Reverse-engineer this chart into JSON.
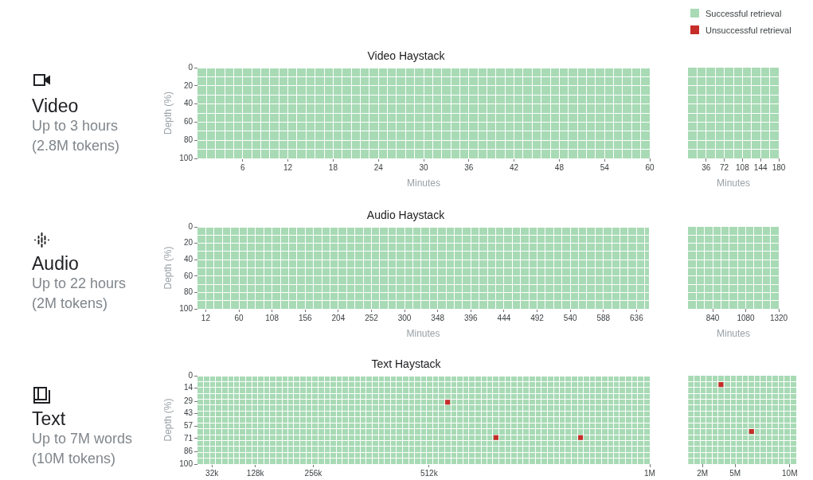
{
  "chart_data": [
    {
      "type": "other",
      "title": "Video",
      "annotations": [
        "Up to 3 hours",
        "(2.8M tokens)"
      ]
    },
    {
      "type": "scatter",
      "title": "Video Haystack",
      "xlabel": "Minutes",
      "ylabel": "Depth (%)",
      "xlim": [
        0,
        60
      ],
      "xticks": [
        {
          "value": 1.2,
          "label": null
        },
        {
          "value": 2.4,
          "label": null
        },
        {
          "value": 3.6,
          "label": null
        },
        {
          "value": 4.8,
          "label": null
        },
        6,
        {
          "value": 7.2,
          "label": null
        },
        {
          "value": 8.4,
          "label": null
        },
        {
          "value": 9.6,
          "label": null
        },
        {
          "value": 10.8,
          "label": null
        },
        12,
        {
          "value": 13.2,
          "label": null
        },
        {
          "value": 14.4,
          "label": null
        },
        {
          "value": 15.6,
          "label": null
        },
        {
          "value": 16.8,
          "label": null
        },
        18,
        {
          "value": 19.2,
          "label": null
        },
        {
          "value": 20.4,
          "label": null
        },
        {
          "value": 21.6,
          "label": null
        },
        {
          "value": 22.8,
          "label": null
        },
        24,
        {
          "value": 25.2,
          "label": null
        },
        {
          "value": 26.4,
          "label": null
        },
        {
          "value": 27.6,
          "label": null
        },
        {
          "value": 28.8,
          "label": null
        },
        30,
        {
          "value": 31.2,
          "label": null
        },
        {
          "value": 32.4,
          "label": null
        },
        {
          "value": 33.6,
          "label": null
        },
        {
          "value": 34.8,
          "label": null
        },
        36,
        {
          "value": 37.2,
          "label": null
        },
        {
          "value": 38.4,
          "label": null
        },
        {
          "value": 39.6,
          "label": null
        },
        {
          "value": 40.8,
          "label": null
        },
        42,
        {
          "value": 43.2,
          "label": null
        },
        {
          "value": 44.4,
          "label": null
        },
        {
          "value": 45.6,
          "label": null
        },
        {
          "value": 46.8,
          "label": null
        },
        48,
        {
          "value": 49.2,
          "label": null
        },
        {
          "value": 50.4,
          "label": null
        },
        {
          "value": 51.6,
          "label": null
        },
        {
          "value": 52.8,
          "label": null
        },
        54,
        {
          "value": 55.2,
          "label": null
        },
        {
          "value": 56.4,
          "label": null
        },
        {
          "value": 57.6,
          "label": null
        },
        {
          "value": 58.8,
          "label": null
        },
        60
      ],
      "ylim": [
        100,
        0
      ],
      "yticks": [
        0,
        {
          "value": 10,
          "label": null
        },
        20,
        {
          "value": 30,
          "label": null
        },
        40,
        {
          "value": 50,
          "label": null
        },
        60,
        {
          "value": 70,
          "label": null
        },
        80,
        {
          "value": 90,
          "label": null
        },
        100
      ],
      "grid": true,
      "bands": [
        {
          "axis": "y",
          "from": 0,
          "to": 100,
          "color": "#a8dab5"
        }
      ]
    },
    {
      "type": "scatter",
      "xlabel": "Minutes",
      "tick_labels": "x",
      "xlim": [
        0,
        180
      ],
      "xticks": [
        {
          "value": 18,
          "label": null
        },
        36,
        {
          "value": 54,
          "label": null
        },
        72,
        {
          "value": 90,
          "label": null
        },
        108,
        {
          "value": 126,
          "label": null
        },
        144,
        {
          "value": 162,
          "label": null
        },
        180
      ],
      "ylim": [
        100,
        0
      ],
      "yticks": [
        {
          "value": 10,
          "label": null
        },
        {
          "value": 20,
          "label": null
        },
        {
          "value": 30,
          "label": null
        },
        {
          "value": 40,
          "label": null
        },
        {
          "value": 50,
          "label": null
        },
        {
          "value": 60,
          "label": null
        },
        {
          "value": 70,
          "label": null
        },
        {
          "value": 80,
          "label": null
        },
        {
          "value": 90,
          "label": null
        }
      ],
      "grid": true,
      "bands": [
        {
          "axis": "y",
          "from": 0,
          "to": 100,
          "color": "#a8dab5"
        }
      ]
    },
    {
      "type": "other",
      "title": "Audio",
      "annotations": [
        "Up to 22 hours",
        "(2M tokens)"
      ]
    },
    {
      "type": "scatter",
      "title": "Audio Haystack",
      "xlabel": "Minutes",
      "ylabel": "Depth (%)",
      "xlim": [
        0,
        654
      ],
      "xticks": [
        12,
        {
          "value": 24,
          "label": null
        },
        {
          "value": 36,
          "label": null
        },
        {
          "value": 48,
          "label": null
        },
        60,
        {
          "value": 72,
          "label": null
        },
        {
          "value": 84,
          "label": null
        },
        {
          "value": 96,
          "label": null
        },
        108,
        {
          "value": 120,
          "label": null
        },
        {
          "value": 132,
          "label": null
        },
        {
          "value": 144,
          "label": null
        },
        156,
        {
          "value": 168,
          "label": null
        },
        {
          "value": 180,
          "label": null
        },
        {
          "value": 192,
          "label": null
        },
        204,
        {
          "value": 216,
          "label": null
        },
        {
          "value": 228,
          "label": null
        },
        {
          "value": 240,
          "label": null
        },
        252,
        {
          "value": 264,
          "label": null
        },
        {
          "value": 276,
          "label": null
        },
        {
          "value": 288,
          "label": null
        },
        300,
        {
          "value": 312,
          "label": null
        },
        {
          "value": 324,
          "label": null
        },
        {
          "value": 336,
          "label": null
        },
        348,
        {
          "value": 360,
          "label": null
        },
        {
          "value": 372,
          "label": null
        },
        {
          "value": 384,
          "label": null
        },
        396,
        {
          "value": 408,
          "label": null
        },
        {
          "value": 420,
          "label": null
        },
        {
          "value": 432,
          "label": null
        },
        444,
        {
          "value": 456,
          "label": null
        },
        {
          "value": 468,
          "label": null
        },
        {
          "value": 480,
          "label": null
        },
        492,
        {
          "value": 504,
          "label": null
        },
        {
          "value": 516,
          "label": null
        },
        {
          "value": 528,
          "label": null
        },
        540,
        {
          "value": 552,
          "label": null
        },
        {
          "value": 564,
          "label": null
        },
        {
          "value": 576,
          "label": null
        },
        588,
        {
          "value": 600,
          "label": null
        },
        {
          "value": 612,
          "label": null
        },
        {
          "value": 624,
          "label": null
        },
        636,
        {
          "value": 648,
          "label": null
        }
      ],
      "ylim": [
        100,
        0
      ],
      "yticks": [
        0,
        {
          "value": 10,
          "label": null
        },
        20,
        {
          "value": 30,
          "label": null
        },
        40,
        {
          "value": 50,
          "label": null
        },
        60,
        {
          "value": 70,
          "label": null
        },
        80,
        {
          "value": 90,
          "label": null
        },
        100
      ],
      "grid": true,
      "bands": [
        {
          "axis": "y",
          "from": 0,
          "to": 100,
          "color": "#a8dab5"
        }
      ]
    },
    {
      "type": "scatter",
      "xlabel": "Minutes",
      "tick_labels": "x",
      "xlim": [
        660,
        1320
      ],
      "xticks": [
        {
          "value": 720,
          "label": null
        },
        {
          "value": 780,
          "label": null
        },
        840,
        {
          "value": 900,
          "label": null
        },
        {
          "value": 960,
          "label": null
        },
        {
          "value": 1020,
          "label": null
        },
        1080,
        {
          "value": 1140,
          "label": null
        },
        {
          "value": 1200,
          "label": null
        },
        {
          "value": 1260,
          "label": null
        },
        1320
      ],
      "ylim": [
        100,
        0
      ],
      "yticks": [
        {
          "value": 10,
          "label": null
        },
        {
          "value": 20,
          "label": null
        },
        {
          "value": 30,
          "label": null
        },
        {
          "value": 40,
          "label": null
        },
        {
          "value": 50,
          "label": null
        },
        {
          "value": 60,
          "label": null
        },
        {
          "value": 70,
          "label": null
        },
        {
          "value": 80,
          "label": null
        },
        {
          "value": 90,
          "label": null
        }
      ],
      "grid": true,
      "bands": [
        {
          "axis": "y",
          "from": 0,
          "to": 100,
          "color": "#a8dab5"
        }
      ]
    },
    {
      "type": "other",
      "title": "Text",
      "annotations": [
        "Up to 7M words",
        "(10M tokens)"
      ]
    },
    {
      "type": "scatter",
      "title": "Text Haystack",
      "ylabel": "Depth (%)",
      "xlim": [
        0,
        1000000
      ],
      "xticks": [
        {
          "value": 13000,
          "label": null
        },
        {
          "value": 27000,
          "label": null
        },
        {
          "value": 32000,
          "label": "32k"
        },
        {
          "value": 40000,
          "label": null
        },
        {
          "value": 53000,
          "label": null
        },
        {
          "value": 67000,
          "label": null
        },
        {
          "value": 80000,
          "label": null
        },
        {
          "value": 93000,
          "label": null
        },
        {
          "value": 107000,
          "label": null
        },
        {
          "value": 120000,
          "label": null
        },
        {
          "value": 128000,
          "label": "128k"
        },
        {
          "value": 133000,
          "label": null
        },
        {
          "value": 147000,
          "label": null
        },
        {
          "value": 160000,
          "label": null
        },
        {
          "value": 173000,
          "label": null
        },
        {
          "value": 187000,
          "label": null
        },
        {
          "value": 200000,
          "label": null
        },
        {
          "value": 213000,
          "label": null
        },
        {
          "value": 227000,
          "label": null
        },
        {
          "value": 240000,
          "label": null
        },
        {
          "value": 253000,
          "label": null
        },
        {
          "value": 256000,
          "label": "256k"
        },
        {
          "value": 267000,
          "label": null
        },
        {
          "value": 280000,
          "label": null
        },
        {
          "value": 293000,
          "label": null
        },
        {
          "value": 307000,
          "label": null
        },
        {
          "value": 320000,
          "label": null
        },
        {
          "value": 333000,
          "label": null
        },
        {
          "value": 347000,
          "label": null
        },
        {
          "value": 360000,
          "label": null
        },
        {
          "value": 373000,
          "label": null
        },
        {
          "value": 387000,
          "label": null
        },
        {
          "value": 400000,
          "label": null
        },
        {
          "value": 413000,
          "label": null
        },
        {
          "value": 427000,
          "label": null
        },
        {
          "value": 440000,
          "label": null
        },
        {
          "value": 453000,
          "label": null
        },
        {
          "value": 467000,
          "label": null
        },
        {
          "value": 480000,
          "label": null
        },
        {
          "value": 493000,
          "label": null
        },
        {
          "value": 507000,
          "label": null
        },
        {
          "value": 512000,
          "label": "512k"
        },
        {
          "value": 520000,
          "label": null
        },
        {
          "value": 533000,
          "label": null
        },
        {
          "value": 547000,
          "label": null
        },
        {
          "value": 560000,
          "label": null
        },
        {
          "value": 573000,
          "label": null
        },
        {
          "value": 587000,
          "label": null
        },
        {
          "value": 600000,
          "label": null
        },
        {
          "value": 613000,
          "label": null
        },
        {
          "value": 627000,
          "label": null
        },
        {
          "value": 640000,
          "label": null
        },
        {
          "value": 653000,
          "label": null
        },
        {
          "value": 667000,
          "label": null
        },
        {
          "value": 680000,
          "label": null
        },
        {
          "value": 693000,
          "label": null
        },
        {
          "value": 707000,
          "label": null
        },
        {
          "value": 720000,
          "label": null
        },
        {
          "value": 733000,
          "label": null
        },
        {
          "value": 747000,
          "label": null
        },
        {
          "value": 760000,
          "label": null
        },
        {
          "value": 773000,
          "label": null
        },
        {
          "value": 787000,
          "label": null
        },
        {
          "value": 800000,
          "label": null
        },
        {
          "value": 813000,
          "label": null
        },
        {
          "value": 827000,
          "label": null
        },
        {
          "value": 840000,
          "label": null
        },
        {
          "value": 853000,
          "label": null
        },
        {
          "value": 867000,
          "label": null
        },
        {
          "value": 880000,
          "label": null
        },
        {
          "value": 893000,
          "label": null
        },
        {
          "value": 907000,
          "label": null
        },
        {
          "value": 920000,
          "label": null
        },
        {
          "value": 933000,
          "label": null
        },
        {
          "value": 947000,
          "label": null
        },
        {
          "value": 960000,
          "label": null
        },
        {
          "value": 973000,
          "label": null
        },
        {
          "value": 987000,
          "label": null
        },
        {
          "value": 1000000,
          "label": "1M"
        }
      ],
      "ylim": [
        100,
        0
      ],
      "yticks": [
        0,
        {
          "value": 6.7,
          "label": null
        },
        {
          "value": 13.3,
          "label": null
        },
        14,
        {
          "value": 20,
          "label": null
        },
        {
          "value": 26.7,
          "label": null
        },
        29,
        {
          "value": 33.3,
          "label": null
        },
        {
          "value": 40,
          "label": null
        },
        43,
        {
          "value": 46.7,
          "label": null
        },
        {
          "value": 53.3,
          "label": null
        },
        57,
        {
          "value": 60,
          "label": null
        },
        {
          "value": 66.7,
          "label": null
        },
        71,
        {
          "value": 73.3,
          "label": null
        },
        {
          "value": 80,
          "label": null
        },
        86,
        {
          "value": 86.7,
          "label": null
        },
        {
          "value": 93.3,
          "label": null
        },
        100
      ],
      "grid": true,
      "marker": "square",
      "legend": "top right",
      "bands": [
        {
          "axis": "y",
          "from": 0,
          "to": 100,
          "label": "Successful retrieval",
          "color": "#a8dab5"
        }
      ],
      "series": [
        {
          "name": "Unsuccessful retrieval",
          "color": "#c62d28",
          "x": [
            553000,
            660000,
            847000
          ],
          "values": [
            30,
            70,
            70
          ]
        }
      ]
    },
    {
      "type": "scatter",
      "tick_labels": "x",
      "xlim": [
        700000,
        10600000
      ],
      "xticks": [
        {
          "value": 1250000,
          "label": null
        },
        {
          "value": 1800000,
          "label": null
        },
        {
          "value": 2000000,
          "label": "2M"
        },
        {
          "value": 2350000,
          "label": null
        },
        {
          "value": 2900000,
          "label": null
        },
        {
          "value": 3450000,
          "label": null
        },
        {
          "value": 4000000,
          "label": null
        },
        {
          "value": 4550000,
          "label": null
        },
        {
          "value": 5000000,
          "label": "5M"
        },
        {
          "value": 5100000,
          "label": null
        },
        {
          "value": 5650000,
          "label": null
        },
        {
          "value": 6200000,
          "label": null
        },
        {
          "value": 6750000,
          "label": null
        },
        {
          "value": 7300000,
          "label": null
        },
        {
          "value": 7850000,
          "label": null
        },
        {
          "value": 8400000,
          "label": null
        },
        {
          "value": 8950000,
          "label": null
        },
        {
          "value": 9500000,
          "label": null
        },
        {
          "value": 10000000,
          "label": "10M"
        },
        {
          "value": 10050000,
          "label": null
        }
      ],
      "ylim": [
        100,
        0
      ],
      "yticks": [
        {
          "value": 6.7,
          "label": null
        },
        {
          "value": 13.3,
          "label": null
        },
        {
          "value": 20,
          "label": null
        },
        {
          "value": 26.7,
          "label": null
        },
        {
          "value": 33.3,
          "label": null
        },
        {
          "value": 40,
          "label": null
        },
        {
          "value": 46.7,
          "label": null
        },
        {
          "value": 53.3,
          "label": null
        },
        {
          "value": 60,
          "label": null
        },
        {
          "value": 66.7,
          "label": null
        },
        {
          "value": 73.3,
          "label": null
        },
        {
          "value": 80,
          "label": null
        },
        {
          "value": 86.7,
          "label": null
        },
        {
          "value": 93.3,
          "label": null
        }
      ],
      "grid": true,
      "marker": "square",
      "bands": [
        {
          "axis": "y",
          "from": 0,
          "to": 100,
          "color": "#a8dab5"
        }
      ],
      "series": [
        {
          "color": "#c62d28",
          "x": [
            3700000,
            6500000
          ],
          "values": [
            10,
            63
          ]
        }
      ]
    }
  ]
}
